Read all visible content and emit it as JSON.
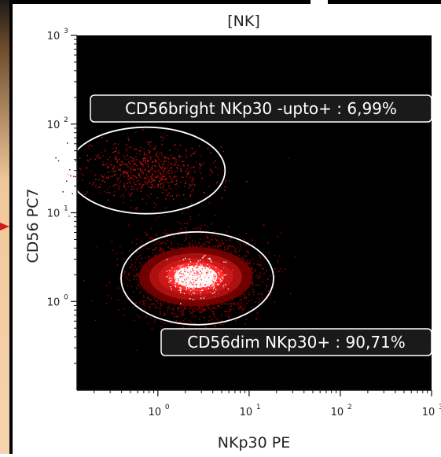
{
  "chart_data": {
    "type": "scatter",
    "title": "[NK]",
    "xlabel": "NKp30 PE",
    "ylabel": "CD56 PC7",
    "xscale": "log",
    "yscale": "log",
    "xlim": [
      0.13,
      1000
    ],
    "ylim": [
      0.1,
      1000
    ],
    "x_ticks": [
      {
        "base": "10",
        "exp": "0"
      },
      {
        "base": "10",
        "exp": "1"
      },
      {
        "base": "10",
        "exp": "2"
      },
      {
        "base": "10",
        "exp": "3"
      }
    ],
    "y_ticks": [
      {
        "base": "10",
        "exp": "0"
      },
      {
        "base": "10",
        "exp": "1"
      },
      {
        "base": "10",
        "exp": "2"
      },
      {
        "base": "10",
        "exp": "3"
      }
    ],
    "gates": [
      {
        "label": "CD56bright NKp30 -upto+ : 6,99%",
        "center": [
          0.75,
          30
        ],
        "label_position": "above"
      },
      {
        "label": "CD56dim NKp30+ : 90,71%",
        "center": [
          2.6,
          1.9
        ],
        "label_position": "below-right"
      }
    ],
    "background": "#000000",
    "gate_color": "#ffffff",
    "event_colors": [
      "#8b0000",
      "#c31515",
      "#ff2a2a",
      "#ffffff"
    ]
  }
}
